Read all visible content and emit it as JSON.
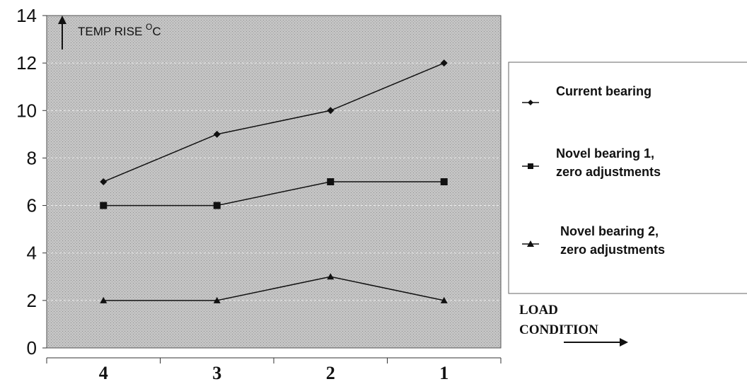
{
  "chart_data": {
    "type": "line",
    "categories": [
      "4",
      "3",
      "2",
      "1"
    ],
    "series": [
      {
        "name": "Current bearing",
        "name_lines": [
          "Current bearing"
        ],
        "marker": "diamond",
        "values": [
          7,
          9,
          10,
          12
        ]
      },
      {
        "name": "Novel bearing 1, zero adjustments",
        "name_lines": [
          "Novel bearing 1,",
          "zero adjustments"
        ],
        "marker": "square",
        "values": [
          6,
          6,
          7,
          7
        ]
      },
      {
        "name": "Novel bearing 2, zero adjustments",
        "name_lines": [
          "Novel bearing 2,",
          "zero adjustments"
        ],
        "marker": "triangle",
        "values": [
          2,
          2,
          3,
          2
        ]
      }
    ],
    "ylabel_main": "TEMP RISE ",
    "ylabel_sup": "O",
    "ylabel_unit": "C",
    "xlabel_lines": [
      "LOAD",
      "CONDITION"
    ],
    "ylim": [
      0,
      14
    ],
    "yticks": [
      0,
      2,
      4,
      6,
      8,
      10,
      12,
      14
    ],
    "grid": true,
    "legend_position": "right",
    "colors": {
      "plot_background": "#c4c4c4",
      "line": "#111111",
      "grid": "#e6e6e6"
    }
  }
}
